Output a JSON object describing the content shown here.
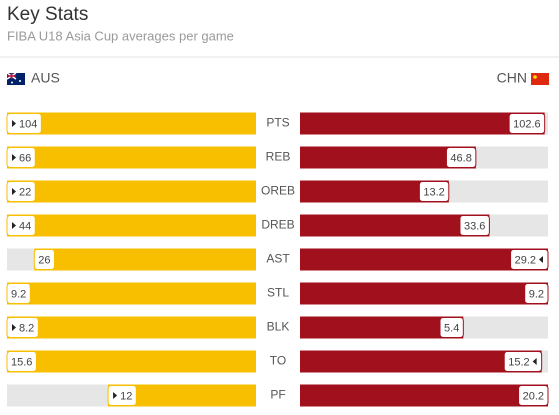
{
  "header": {
    "title": "Key Stats",
    "subtitle": "FIBA U18 Asia Cup averages per game"
  },
  "teams": {
    "home": {
      "name": "AUS",
      "color": "#f7bf00"
    },
    "away": {
      "name": "CHN",
      "color": "#a0101d"
    }
  },
  "rows": [
    {
      "stat": "PTS",
      "home": 104,
      "away": 102.6,
      "leader": "AUS"
    },
    {
      "stat": "REB",
      "home": 66,
      "away": 46.8,
      "leader": "AUS"
    },
    {
      "stat": "OREB",
      "home": 22,
      "away": 13.2,
      "leader": "AUS"
    },
    {
      "stat": "DREB",
      "home": 44,
      "away": 33.6,
      "leader": "AUS"
    },
    {
      "stat": "AST",
      "home": 26,
      "away": 29.2,
      "leader": "CHN"
    },
    {
      "stat": "STL",
      "home": 9.2,
      "away": 9.2,
      "leader": null
    },
    {
      "stat": "BLK",
      "home": 8.2,
      "away": 5.4,
      "leader": "AUS"
    },
    {
      "stat": "TO",
      "home": 15.6,
      "away": 15.2,
      "leader": "CHN"
    },
    {
      "stat": "PF",
      "home": 12,
      "away": 20.2,
      "leader": "AUS"
    }
  ]
}
